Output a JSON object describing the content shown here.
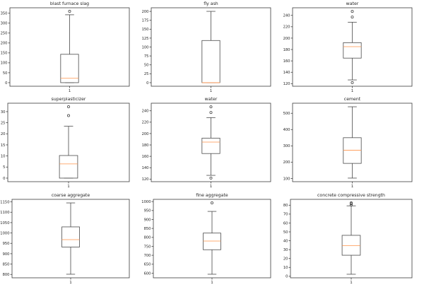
{
  "figure": {
    "background": "#ffffff",
    "spine_color": "#3d3d3d",
    "box_line_color": "#4a4a4a",
    "median_color": "#ff9248",
    "text_color": "#262626",
    "grid": {
      "rows": 3,
      "cols": 3
    }
  },
  "chart_data": [
    {
      "type": "boxplot",
      "title": "blast furnace slag",
      "x_tick_label": "1",
      "ylim": [
        -18,
        377.4
      ],
      "yticks": [
        0,
        50,
        100,
        150,
        200,
        250,
        300,
        350
      ],
      "stats": {
        "whisker_low": 0,
        "q1": 0,
        "median": 22.1,
        "q3": 142.95,
        "whisker_high": 342.1,
        "outliers": [
          359.4
        ]
      }
    },
    {
      "type": "boxplot",
      "title": "fly ash",
      "x_tick_label": "1",
      "ylim": [
        -10,
        210.1
      ],
      "yticks": [
        0,
        25,
        50,
        75,
        100,
        125,
        150,
        175,
        200
      ],
      "stats": {
        "whisker_low": 0,
        "q1": 0,
        "median": 0,
        "q3": 118.3,
        "whisker_high": 200.1,
        "outliers": []
      }
    },
    {
      "type": "boxplot",
      "title": "water",
      "x_tick_label": "1",
      "ylim": [
        115.5,
        253.3
      ],
      "yticks": [
        120,
        140,
        160,
        180,
        200,
        220,
        240
      ],
      "stats": {
        "whisker_low": 126.6,
        "q1": 164.9,
        "median": 185,
        "q3": 192,
        "whisker_high": 228,
        "outliers": [
          246.9,
          237,
          121.8
        ]
      }
    },
    {
      "type": "boxplot",
      "title": "superplasticizer",
      "x_tick_label": "1",
      "ylim": [
        -1.6,
        33.8
      ],
      "yticks": [
        0,
        5,
        10,
        15,
        20,
        25,
        30
      ],
      "stats": {
        "whisker_low": 0,
        "q1": 0,
        "median": 6.4,
        "q3": 10.2,
        "whisker_high": 23.4,
        "outliers": [
          32.2,
          28.2
        ]
      }
    },
    {
      "type": "boxplot",
      "title": "water",
      "x_tick_label": "1",
      "ylim": [
        115.5,
        253.3
      ],
      "yticks": [
        120,
        140,
        160,
        180,
        200,
        220,
        240
      ],
      "stats": {
        "whisker_low": 126.6,
        "q1": 164.9,
        "median": 185,
        "q3": 192,
        "whisker_high": 228,
        "outliers": [
          246.9,
          237,
          121.8
        ]
      }
    },
    {
      "type": "boxplot",
      "title": "cement",
      "x_tick_label": "1",
      "ylim": [
        80.1,
        561.9
      ],
      "yticks": [
        100,
        200,
        300,
        400,
        500
      ],
      "stats": {
        "whisker_low": 102,
        "q1": 192.4,
        "median": 272.9,
        "q3": 350,
        "whisker_high": 540,
        "outliers": []
      }
    },
    {
      "type": "boxplot",
      "title": "coarse aggregate",
      "x_tick_label": "1",
      "ylim": [
        783.8,
        1162.2
      ],
      "yticks": [
        800,
        850,
        900,
        950,
        1000,
        1050,
        1100,
        1150
      ],
      "stats": {
        "whisker_low": 801,
        "q1": 932,
        "median": 968,
        "q3": 1029.4,
        "whisker_high": 1145,
        "outliers": []
      }
    },
    {
      "type": "boxplot",
      "title": "fine aggregate",
      "x_tick_label": "1",
      "ylim": [
        574.1,
        1012.5
      ],
      "yticks": [
        600,
        650,
        700,
        750,
        800,
        850,
        900,
        950,
        1000
      ],
      "stats": {
        "whisker_low": 594,
        "q1": 730.95,
        "median": 779.5,
        "q3": 824,
        "whisker_high": 945.1,
        "outliers": [
          992.6
        ]
      }
    },
    {
      "type": "boxplot",
      "title": "concrete compressive strength",
      "x_tick_label": "1",
      "ylim": [
        -1.7,
        86.6
      ],
      "yticks": [
        0,
        10,
        20,
        30,
        40,
        50,
        60,
        70,
        80
      ],
      "stats": {
        "whisker_low": 2.3,
        "q1": 23.7,
        "median": 34.4,
        "q3": 46.1,
        "whisker_high": 79.3,
        "outliers": [
          80.2,
          81.75,
          82.6
        ]
      }
    }
  ]
}
